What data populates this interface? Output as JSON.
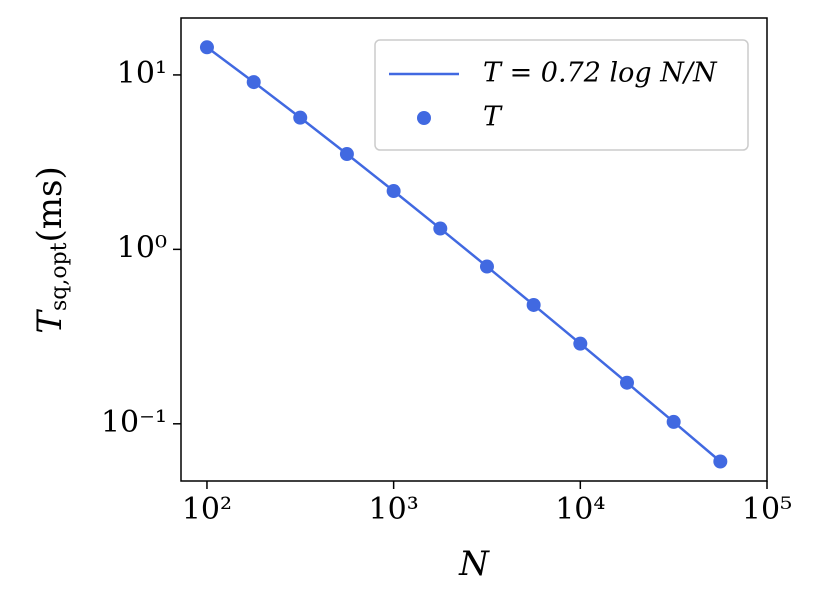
{
  "chart_data": {
    "type": "line",
    "x": [
      100,
      178,
      316,
      562,
      1000,
      1778,
      3162,
      5623,
      10000,
      17783,
      31623,
      56234
    ],
    "series": [
      {
        "name": "T = 0.72 log N/N",
        "color": "#4169e1",
        "style": "line",
        "values": [
          14.4,
          9.1,
          5.69,
          3.52,
          2.16,
          1.316,
          0.797,
          0.48,
          0.288,
          0.172,
          0.1025,
          0.0608
        ]
      },
      {
        "name": "T",
        "color": "#4169e1",
        "style": "marker",
        "values": [
          14.4,
          9.1,
          5.69,
          3.52,
          2.16,
          1.316,
          0.797,
          0.48,
          0.288,
          0.172,
          0.1025,
          0.0608
        ]
      }
    ],
    "xlabel": "N",
    "ylabel": {
      "symbol": "T",
      "subscript": "sq,opt",
      "unit": "(ms)"
    },
    "xscale": "log",
    "yscale": "log",
    "xlim": [
      72.6,
      100000
    ],
    "ylim": [
      0.047,
      21.2
    ],
    "xticks": [
      {
        "value": 100,
        "label": "10²"
      },
      {
        "value": 1000,
        "label": "10³"
      },
      {
        "value": 10000,
        "label": "10⁴"
      },
      {
        "value": 100000,
        "label": "10⁵"
      }
    ],
    "yticks": [
      {
        "value": 0.1,
        "label": "10⁻¹"
      },
      {
        "value": 1,
        "label": "10⁰"
      },
      {
        "value": 10,
        "label": "10¹"
      }
    ],
    "grid": false,
    "legend": "upper right"
  }
}
